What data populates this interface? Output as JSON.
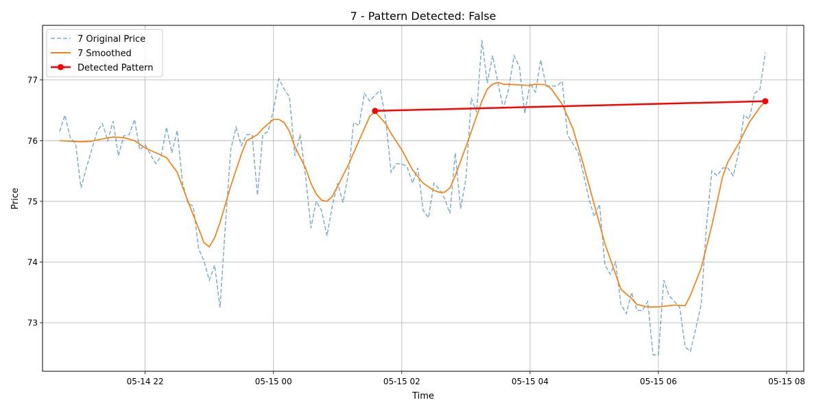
{
  "chart_data": {
    "type": "line",
    "title": "7 - Pattern Detected: False",
    "xlabel": "Time",
    "ylabel": "Price",
    "x_unit": "time",
    "xlim": [
      "05-14 20:24",
      "05-15 08:16"
    ],
    "ylim": [
      72.2,
      77.9
    ],
    "x_ticks": [
      {
        "label": "05-14 22",
        "time": "05-14 22:00"
      },
      {
        "label": "05-15 00",
        "time": "05-15 00:00"
      },
      {
        "label": "05-15 02",
        "time": "05-15 02:00"
      },
      {
        "label": "05-15 04",
        "time": "05-15 04:00"
      },
      {
        "label": "05-15 06",
        "time": "05-15 06:00"
      },
      {
        "label": "05-15 08",
        "time": "05-15 08:00"
      }
    ],
    "y_ticks": [
      73,
      74,
      75,
      76,
      77
    ],
    "grid": true,
    "legend_position": "top-left",
    "series": [
      {
        "name": "7 Original Price",
        "style": "dashed",
        "color": "#1f77b4",
        "points": [
          [
            "05-14 20:40",
            76.15
          ],
          [
            "05-14 20:45",
            76.42
          ],
          [
            "05-14 20:50",
            76.05
          ],
          [
            "05-14 20:55",
            75.95
          ],
          [
            "05-14 21:00",
            75.22
          ],
          [
            "05-14 21:05",
            75.55
          ],
          [
            "05-14 21:10",
            75.85
          ],
          [
            "05-14 21:15",
            76.15
          ],
          [
            "05-14 21:20",
            76.28
          ],
          [
            "05-14 21:25",
            76.0
          ],
          [
            "05-14 21:30",
            76.32
          ],
          [
            "05-14 21:35",
            75.75
          ],
          [
            "05-14 21:40",
            76.08
          ],
          [
            "05-14 21:45",
            76.1
          ],
          [
            "05-14 21:50",
            76.35
          ],
          [
            "05-14 21:55",
            75.85
          ],
          [
            "05-14 22:00",
            75.93
          ],
          [
            "05-14 22:05",
            75.77
          ],
          [
            "05-14 22:10",
            75.62
          ],
          [
            "05-14 22:15",
            75.75
          ],
          [
            "05-14 22:20",
            76.22
          ],
          [
            "05-14 22:25",
            75.8
          ],
          [
            "05-14 22:30",
            76.17
          ],
          [
            "05-14 22:35",
            75.3
          ],
          [
            "05-14 22:40",
            74.97
          ],
          [
            "05-14 22:45",
            74.92
          ],
          [
            "05-14 22:50",
            74.22
          ],
          [
            "05-14 22:55",
            74.02
          ],
          [
            "05-14 23:00",
            73.7
          ],
          [
            "05-14 23:05",
            73.95
          ],
          [
            "05-14 23:10",
            73.25
          ],
          [
            "05-14 23:15",
            74.6
          ],
          [
            "05-14 23:20",
            75.85
          ],
          [
            "05-14 23:25",
            76.22
          ],
          [
            "05-14 23:30",
            75.92
          ],
          [
            "05-14 23:35",
            76.1
          ],
          [
            "05-14 23:40",
            76.1
          ],
          [
            "05-14 23:45",
            75.1
          ],
          [
            "05-14 23:50",
            76.1
          ],
          [
            "05-14 23:55",
            76.15
          ],
          [
            "05-15 00:00",
            76.5
          ],
          [
            "05-15 00:05",
            77.02
          ],
          [
            "05-15 00:10",
            76.85
          ],
          [
            "05-15 00:15",
            76.72
          ],
          [
            "05-15 00:20",
            75.75
          ],
          [
            "05-15 00:25",
            76.1
          ],
          [
            "05-15 00:30",
            75.42
          ],
          [
            "05-15 00:35",
            74.56
          ],
          [
            "05-15 00:40",
            75.0
          ],
          [
            "05-15 00:45",
            74.85
          ],
          [
            "05-15 00:50",
            74.43
          ],
          [
            "05-15 00:55",
            74.92
          ],
          [
            "05-15 01:00",
            75.3
          ],
          [
            "05-15 01:05",
            74.98
          ],
          [
            "05-15 01:10",
            75.45
          ],
          [
            "05-15 01:15",
            76.3
          ],
          [
            "05-15 01:20",
            76.25
          ],
          [
            "05-15 01:25",
            76.78
          ],
          [
            "05-15 01:30",
            76.65
          ],
          [
            "05-15 01:35",
            76.75
          ],
          [
            "05-15 01:40",
            76.83
          ],
          [
            "05-15 01:45",
            76.35
          ],
          [
            "05-15 01:50",
            75.48
          ],
          [
            "05-15 01:55",
            75.62
          ],
          [
            "05-15 02:00",
            75.62
          ],
          [
            "05-15 02:05",
            75.57
          ],
          [
            "05-15 02:10",
            75.3
          ],
          [
            "05-15 02:15",
            75.55
          ],
          [
            "05-15 02:20",
            74.85
          ],
          [
            "05-15 02:25",
            74.73
          ],
          [
            "05-15 02:30",
            75.3
          ],
          [
            "05-15 02:35",
            75.2
          ],
          [
            "05-15 02:40",
            75.05
          ],
          [
            "05-15 02:45",
            74.8
          ],
          [
            "05-15 02:50",
            75.8
          ],
          [
            "05-15 02:55",
            74.88
          ],
          [
            "05-15 03:00",
            75.37
          ],
          [
            "05-15 03:05",
            76.7
          ],
          [
            "05-15 03:10",
            76.47
          ],
          [
            "05-15 03:15",
            77.65
          ],
          [
            "05-15 03:20",
            76.95
          ],
          [
            "05-15 03:25",
            77.4
          ],
          [
            "05-15 03:30",
            76.95
          ],
          [
            "05-15 03:35",
            76.53
          ],
          [
            "05-15 03:40",
            76.85
          ],
          [
            "05-15 03:45",
            77.4
          ],
          [
            "05-15 03:50",
            77.22
          ],
          [
            "05-15 03:55",
            76.45
          ],
          [
            "05-15 04:00",
            76.95
          ],
          [
            "05-15 04:05",
            76.8
          ],
          [
            "05-15 04:10",
            77.33
          ],
          [
            "05-15 04:15",
            76.9
          ],
          [
            "05-15 04:20",
            76.9
          ],
          [
            "05-15 04:25",
            76.9
          ],
          [
            "05-15 04:30",
            76.98
          ],
          [
            "05-15 04:35",
            76.1
          ],
          [
            "05-15 04:40",
            75.95
          ],
          [
            "05-15 04:45",
            75.8
          ],
          [
            "05-15 04:50",
            75.45
          ],
          [
            "05-15 04:55",
            75.05
          ],
          [
            "05-15 05:00",
            74.75
          ],
          [
            "05-15 05:05",
            74.95
          ],
          [
            "05-15 05:10",
            73.95
          ],
          [
            "05-15 05:15",
            73.8
          ],
          [
            "05-15 05:20",
            74.0
          ],
          [
            "05-15 05:25",
            73.3
          ],
          [
            "05-15 05:30",
            73.15
          ],
          [
            "05-15 05:35",
            73.5
          ],
          [
            "05-15 05:40",
            73.2
          ],
          [
            "05-15 05:45",
            73.2
          ],
          [
            "05-15 05:50",
            73.35
          ],
          [
            "05-15 05:55",
            72.47
          ],
          [
            "05-15 06:00",
            72.47
          ],
          [
            "05-15 06:05",
            73.7
          ],
          [
            "05-15 06:10",
            73.45
          ],
          [
            "05-15 06:15",
            73.35
          ],
          [
            "05-15 06:20",
            73.25
          ],
          [
            "05-15 06:25",
            72.6
          ],
          [
            "05-15 06:30",
            72.53
          ],
          [
            "05-15 06:35",
            72.9
          ],
          [
            "05-15 06:40",
            73.3
          ],
          [
            "05-15 06:45",
            74.6
          ],
          [
            "05-15 06:50",
            75.5
          ],
          [
            "05-15 06:55",
            75.42
          ],
          [
            "05-15 07:00",
            75.55
          ],
          [
            "05-15 07:05",
            75.55
          ],
          [
            "05-15 07:10",
            75.42
          ],
          [
            "05-15 07:15",
            75.8
          ],
          [
            "05-15 07:20",
            76.42
          ],
          [
            "05-15 07:25",
            76.35
          ],
          [
            "05-15 07:30",
            76.78
          ],
          [
            "05-15 07:35",
            76.85
          ],
          [
            "05-15 07:40",
            77.45
          ]
        ]
      },
      {
        "name": "7 Smoothed",
        "style": "solid",
        "color": "#ff7f0e",
        "points": [
          [
            "05-14 20:40",
            76.0
          ],
          [
            "05-14 20:50",
            75.99
          ],
          [
            "05-14 21:00",
            75.98
          ],
          [
            "05-14 21:10",
            75.99
          ],
          [
            "05-14 21:20",
            76.03
          ],
          [
            "05-14 21:30",
            76.06
          ],
          [
            "05-14 21:40",
            76.05
          ],
          [
            "05-14 21:50",
            76.0
          ],
          [
            "05-14 22:00",
            75.88
          ],
          [
            "05-14 22:10",
            75.8
          ],
          [
            "05-14 22:20",
            75.72
          ],
          [
            "05-14 22:30",
            75.48
          ],
          [
            "05-14 22:40",
            75.0
          ],
          [
            "05-14 22:50",
            74.55
          ],
          [
            "05-14 22:55",
            74.32
          ],
          [
            "05-14 23:00",
            74.25
          ],
          [
            "05-14 23:05",
            74.4
          ],
          [
            "05-14 23:10",
            74.65
          ],
          [
            "05-14 23:20",
            75.25
          ],
          [
            "05-14 23:30",
            75.78
          ],
          [
            "05-14 23:35",
            76.0
          ],
          [
            "05-14 23:45",
            76.1
          ],
          [
            "05-14 23:50",
            76.2
          ],
          [
            "05-15 00:00",
            76.35
          ],
          [
            "05-15 00:05",
            76.35
          ],
          [
            "05-15 00:10",
            76.3
          ],
          [
            "05-15 00:15",
            76.15
          ],
          [
            "05-15 00:20",
            75.9
          ],
          [
            "05-15 00:30",
            75.55
          ],
          [
            "05-15 00:35",
            75.3
          ],
          [
            "05-15 00:40",
            75.12
          ],
          [
            "05-15 00:45",
            75.02
          ],
          [
            "05-15 00:50",
            75.0
          ],
          [
            "05-15 00:55",
            75.08
          ],
          [
            "05-15 01:00",
            75.25
          ],
          [
            "05-15 01:10",
            75.6
          ],
          [
            "05-15 01:20",
            76.0
          ],
          [
            "05-15 01:25",
            76.2
          ],
          [
            "05-15 01:30",
            76.4
          ],
          [
            "05-15 01:35",
            76.48
          ],
          [
            "05-15 01:40",
            76.38
          ],
          [
            "05-15 01:45",
            76.28
          ],
          [
            "05-15 01:50",
            76.12
          ],
          [
            "05-15 02:00",
            75.85
          ],
          [
            "05-15 02:10",
            75.52
          ],
          [
            "05-15 02:20",
            75.3
          ],
          [
            "05-15 02:30",
            75.18
          ],
          [
            "05-15 02:35",
            75.15
          ],
          [
            "05-15 02:40",
            75.15
          ],
          [
            "05-15 02:45",
            75.22
          ],
          [
            "05-15 02:50",
            75.42
          ],
          [
            "05-15 03:00",
            75.9
          ],
          [
            "05-15 03:05",
            76.15
          ],
          [
            "05-15 03:10",
            76.4
          ],
          [
            "05-15 03:15",
            76.65
          ],
          [
            "05-15 03:20",
            76.85
          ],
          [
            "05-15 03:25",
            76.93
          ],
          [
            "05-15 03:30",
            76.96
          ],
          [
            "05-15 03:35",
            76.93
          ],
          [
            "05-15 04:00",
            76.91
          ],
          [
            "05-15 04:05",
            76.93
          ],
          [
            "05-15 04:15",
            76.92
          ],
          [
            "05-15 04:20",
            76.85
          ],
          [
            "05-15 04:30",
            76.6
          ],
          [
            "05-15 04:40",
            76.2
          ],
          [
            "05-15 04:50",
            75.6
          ],
          [
            "05-15 05:00",
            74.95
          ],
          [
            "05-15 05:10",
            74.3
          ],
          [
            "05-15 05:20",
            73.8
          ],
          [
            "05-15 05:25",
            73.55
          ],
          [
            "05-15 05:35",
            73.4
          ],
          [
            "05-15 05:40",
            73.3
          ],
          [
            "05-15 05:50",
            73.26
          ],
          [
            "05-15 06:00",
            73.26
          ],
          [
            "05-15 06:15",
            73.29
          ],
          [
            "05-15 06:25",
            73.28
          ],
          [
            "05-15 06:30",
            73.45
          ],
          [
            "05-15 06:40",
            73.9
          ],
          [
            "05-15 06:50",
            74.6
          ],
          [
            "05-15 07:00",
            75.4
          ],
          [
            "05-15 07:05",
            75.65
          ],
          [
            "05-15 07:15",
            75.95
          ],
          [
            "05-15 07:25",
            76.3
          ],
          [
            "05-15 07:35",
            76.55
          ],
          [
            "05-15 07:40",
            76.65
          ]
        ]
      },
      {
        "name": "Detected Pattern",
        "style": "solid-markers",
        "color": "#ff0000",
        "points": [
          [
            "05-15 01:35",
            76.49
          ],
          [
            "05-15 07:40",
            76.65
          ]
        ]
      }
    ]
  }
}
